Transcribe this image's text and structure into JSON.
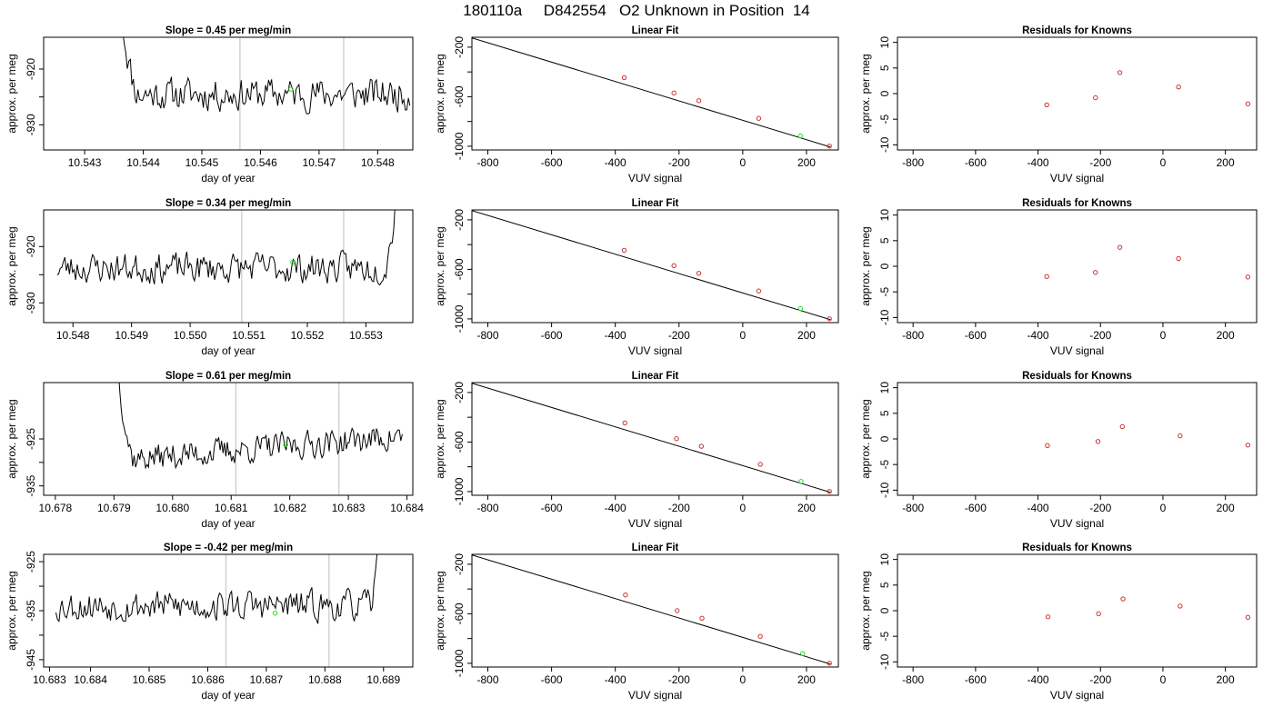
{
  "page_title": "180110a     D842554   O2 Unknown in Position  14",
  "colors": {
    "trace": "#000000",
    "frame": "#000000",
    "known_point": "#cc3333",
    "unknown_point": "#22dd22",
    "marker_line": "#c8c8c8"
  },
  "chart_data": [
    {
      "type": "line",
      "title": "Slope =  0.45  per meg/min",
      "xlabel": "day of year",
      "ylabel": "approx. per meg",
      "xlim": [
        10.5423,
        10.5486
      ],
      "ylim": [
        -934.5,
        -914.3
      ],
      "xticks": [
        10.543,
        10.544,
        10.545,
        10.546,
        10.547,
        10.548
      ],
      "xtick_labels": [
        "10.543",
        "10.544",
        "10.545",
        "10.546",
        "10.547",
        "10.548"
      ],
      "yticks": [
        -920,
        -925,
        -930
      ],
      "ytick_labels": [
        "-920",
        "",
        "-930"
      ],
      "vlines": [
        10.54565,
        10.54742
      ],
      "series": [
        {
          "seed": 11,
          "x_start": 10.54365,
          "x_end": 10.54855,
          "n": 190,
          "base": -924.5,
          "amp": 2.6,
          "spike": {
            "direction": "up",
            "peak": -912,
            "width_frac": 0.055
          },
          "tail": null
        }
      ],
      "unknown_marker": {
        "x": 10.54652,
        "y": -923.6
      }
    },
    {
      "type": "scatter",
      "title": "Linear Fit",
      "xlabel": "VUV signal",
      "ylabel": "approx. per meg",
      "xlim": [
        -850,
        300
      ],
      "ylim": [
        -1030,
        -120
      ],
      "xticks": [
        -800,
        -600,
        -400,
        -200,
        0,
        200
      ],
      "xtick_labels": [
        "-800",
        "-600",
        "-400",
        "-200",
        "0",
        "200"
      ],
      "yticks": [
        -200,
        -400,
        -600,
        -800,
        -1000
      ],
      "ytick_labels": [
        "-200",
        "",
        "-600",
        "",
        "-1000"
      ],
      "line": {
        "x": [
          -850,
          275
        ],
        "y": [
          -125,
          -1006
        ]
      },
      "known_points": {
        "x": [
          -372,
          -216,
          -138,
          50,
          272
        ],
        "y": [
          -446,
          -570,
          -632,
          -775,
          -999
        ]
      },
      "unknown_points": {
        "x": [
          181
        ],
        "y": [
          -917
        ]
      }
    },
    {
      "type": "scatter",
      "title": "Residuals for Knowns",
      "xlabel": "VUV signal",
      "ylabel": "approx. per meg",
      "xlim": [
        -850,
        300
      ],
      "ylim": [
        -11,
        11
      ],
      "xticks": [
        -800,
        -600,
        -400,
        -200,
        0,
        200
      ],
      "xtick_labels": [
        "-800",
        "-600",
        "-400",
        "-200",
        "0",
        "200"
      ],
      "yticks": [
        10,
        5,
        0,
        -5,
        -10
      ],
      "ytick_labels": [
        "10",
        "5",
        "0",
        "-5",
        "-10"
      ],
      "known_points": {
        "x": [
          -372,
          -216,
          -138,
          50,
          272
        ],
        "y": [
          -2.2,
          -0.8,
          4.1,
          1.3,
          -2.0
        ]
      }
    },
    {
      "type": "line",
      "title": "Slope =  0.34  per meg/min",
      "xlabel": "day of year",
      "ylabel": "approx. per meg",
      "xlim": [
        10.5475,
        10.5538
      ],
      "ylim": [
        -933.5,
        -913.5
      ],
      "xticks": [
        10.548,
        10.549,
        10.55,
        10.551,
        10.552,
        10.553
      ],
      "xtick_labels": [
        "10.548",
        "10.549",
        "10.550",
        "10.551",
        "10.552",
        "10.553"
      ],
      "yticks": [
        -920,
        -925,
        -930
      ],
      "ytick_labels": [
        "-920",
        "",
        "-930"
      ],
      "vlines": [
        10.55088,
        10.55262
      ],
      "series": [
        {
          "seed": 23,
          "x_start": 10.54773,
          "x_end": 10.5535,
          "n": 220,
          "base": -923.8,
          "amp": 2.4,
          "spike": null,
          "tail": {
            "direction": "up",
            "peak": -912,
            "width_frac": 0.04
          }
        }
      ],
      "unknown_marker": {
        "x": 10.55175,
        "y": -922.8
      }
    },
    {
      "type": "scatter",
      "title": "Linear Fit",
      "xlabel": "VUV signal",
      "ylabel": "approx. per meg",
      "xlim": [
        -850,
        300
      ],
      "ylim": [
        -1030,
        -120
      ],
      "xticks": [
        -800,
        -600,
        -400,
        -200,
        0,
        200
      ],
      "xtick_labels": [
        "-800",
        "-600",
        "-400",
        "-200",
        "0",
        "200"
      ],
      "yticks": [
        -200,
        -400,
        -600,
        -800,
        -1000
      ],
      "ytick_labels": [
        "-200",
        "",
        "-600",
        "",
        "-1000"
      ],
      "line": {
        "x": [
          -850,
          275
        ],
        "y": [
          -125,
          -1006
        ]
      },
      "known_points": {
        "x": [
          -372,
          -216,
          -138,
          50,
          272
        ],
        "y": [
          -446,
          -570,
          -632,
          -775,
          -999
        ]
      },
      "unknown_points": {
        "x": [
          181
        ],
        "y": [
          -917
        ]
      }
    },
    {
      "type": "scatter",
      "title": "Residuals for Knowns",
      "xlabel": "VUV signal",
      "ylabel": "approx. per meg",
      "xlim": [
        -850,
        300
      ],
      "ylim": [
        -11,
        11
      ],
      "xticks": [
        -800,
        -600,
        -400,
        -200,
        0,
        200
      ],
      "xtick_labels": [
        "-800",
        "-600",
        "-400",
        "-200",
        "0",
        "200"
      ],
      "yticks": [
        10,
        5,
        0,
        -5,
        -10
      ],
      "ytick_labels": [
        "10",
        "5",
        "0",
        "-5",
        "-10"
      ],
      "known_points": {
        "x": [
          -372,
          -216,
          -138,
          50,
          272
        ],
        "y": [
          -2.0,
          -1.2,
          3.7,
          1.5,
          -2.1
        ]
      }
    },
    {
      "type": "line",
      "title": "Slope =  0.61  per meg/min",
      "xlabel": "day of year",
      "ylabel": "approx. per meg",
      "xlim": [
        10.6778,
        10.6841
      ],
      "ylim": [
        -937,
        -913
      ],
      "xticks": [
        10.678,
        10.679,
        10.68,
        10.681,
        10.682,
        10.683,
        10.684
      ],
      "xtick_labels": [
        "10.678",
        "10.679",
        "10.680",
        "10.681",
        "10.682",
        "10.683",
        "10.684"
      ],
      "yticks": [
        -925,
        -930,
        -935
      ],
      "ytick_labels": [
        "-925",
        "",
        "-935"
      ],
      "vlines": [
        10.68108,
        10.68284
      ],
      "series": [
        {
          "seed": 37,
          "x_start": 10.67905,
          "x_end": 10.68392,
          "n": 200,
          "base": -927.0,
          "amp": 2.6,
          "trend": 5.0,
          "spike": {
            "direction": "up",
            "peak": -905,
            "width_frac": 0.06
          },
          "tail": null
        }
      ],
      "unknown_marker": {
        "x": 10.68193,
        "y": -926.2
      }
    },
    {
      "type": "scatter",
      "title": "Linear Fit",
      "xlabel": "VUV signal",
      "ylabel": "approx. per meg",
      "xlim": [
        -850,
        300
      ],
      "ylim": [
        -1030,
        -120
      ],
      "xticks": [
        -800,
        -600,
        -400,
        -200,
        0,
        200
      ],
      "xtick_labels": [
        "-800",
        "-600",
        "-400",
        "-200",
        "0",
        "200"
      ],
      "yticks": [
        -200,
        -400,
        -600,
        -800,
        -1000
      ],
      "ytick_labels": [
        "-200",
        "",
        "-600",
        "",
        "-1000"
      ],
      "line": {
        "x": [
          -850,
          275
        ],
        "y": [
          -125,
          -1006
        ]
      },
      "known_points": {
        "x": [
          -370,
          -208,
          -130,
          55,
          272
        ],
        "y": [
          -446,
          -573,
          -634,
          -780,
          -999
        ]
      },
      "unknown_points": {
        "x": [
          183
        ],
        "y": [
          -918
        ]
      }
    },
    {
      "type": "scatter",
      "title": "Residuals for Knowns",
      "xlabel": "VUV signal",
      "ylabel": "approx. per meg",
      "xlim": [
        -850,
        300
      ],
      "ylim": [
        -11,
        11
      ],
      "xticks": [
        -800,
        -600,
        -400,
        -200,
        0,
        200
      ],
      "xtick_labels": [
        "-800",
        "-600",
        "-400",
        "-200",
        "0",
        "200"
      ],
      "yticks": [
        10,
        5,
        0,
        -5,
        -10
      ],
      "ytick_labels": [
        "10",
        "5",
        "0",
        "-5",
        "-10"
      ],
      "known_points": {
        "x": [
          -370,
          -208,
          -130,
          55,
          272
        ],
        "y": [
          -1.3,
          -0.5,
          2.4,
          0.6,
          -1.2
        ]
      }
    },
    {
      "type": "line",
      "title": "Slope =  -0.42  per meg/min",
      "xlabel": "day of year",
      "ylabel": "approx. per meg",
      "xlim": [
        10.6832,
        10.6895
      ],
      "ylim": [
        -946.5,
        -923.5
      ],
      "xticks": [
        10.6833,
        10.684,
        10.685,
        10.686,
        10.687,
        10.688,
        10.689
      ],
      "xtick_labels": [
        "10.683",
        "10.684",
        "10.685",
        "10.686",
        "10.687",
        "10.688",
        "10.689"
      ],
      "yticks": [
        -925,
        -930,
        -935,
        -940,
        -945
      ],
      "ytick_labels": [
        "-925",
        "",
        "-935",
        "",
        "-945"
      ],
      "vlines": [
        10.68631,
        10.68807
      ],
      "series": [
        {
          "seed": 53,
          "x_start": 10.68341,
          "x_end": 10.68894,
          "n": 215,
          "base": -934.0,
          "amp": 2.8,
          "spike": null,
          "tail": {
            "direction": "up",
            "peak": -918,
            "width_frac": 0.035
          }
        }
      ],
      "unknown_marker": {
        "x": 10.68715,
        "y": -935.5
      }
    },
    {
      "type": "scatter",
      "title": "Linear Fit",
      "xlabel": "VUV signal",
      "ylabel": "approx. per meg",
      "xlim": [
        -850,
        300
      ],
      "ylim": [
        -1030,
        -120
      ],
      "xticks": [
        -800,
        -600,
        -400,
        -200,
        0,
        200
      ],
      "xtick_labels": [
        "-800",
        "-600",
        "-400",
        "-200",
        "0",
        "200"
      ],
      "yticks": [
        -200,
        -400,
        -600,
        -800,
        -1000
      ],
      "ytick_labels": [
        "-200",
        "",
        "-600",
        "",
        "-1000"
      ],
      "line": {
        "x": [
          -850,
          275
        ],
        "y": [
          -125,
          -1006
        ]
      },
      "known_points": {
        "x": [
          -368,
          -206,
          -128,
          55,
          272
        ],
        "y": [
          -448,
          -575,
          -636,
          -782,
          -999
        ]
      },
      "unknown_points": {
        "x": [
          188
        ],
        "y": [
          -921
        ]
      }
    },
    {
      "type": "scatter",
      "title": "Residuals for Knowns",
      "xlabel": "VUV signal",
      "ylabel": "approx. per meg",
      "xlim": [
        -850,
        300
      ],
      "ylim": [
        -11,
        11
      ],
      "xticks": [
        -800,
        -600,
        -400,
        -200,
        0,
        200
      ],
      "xtick_labels": [
        "-800",
        "-600",
        "-400",
        "-200",
        "0",
        "200"
      ],
      "yticks": [
        10,
        5,
        0,
        -5,
        -10
      ],
      "ytick_labels": [
        "10",
        "5",
        "0",
        "-5",
        "-10"
      ],
      "known_points": {
        "x": [
          -368,
          -206,
          -128,
          55,
          272
        ],
        "y": [
          -1.2,
          -0.6,
          2.3,
          0.9,
          -1.3
        ]
      }
    }
  ]
}
